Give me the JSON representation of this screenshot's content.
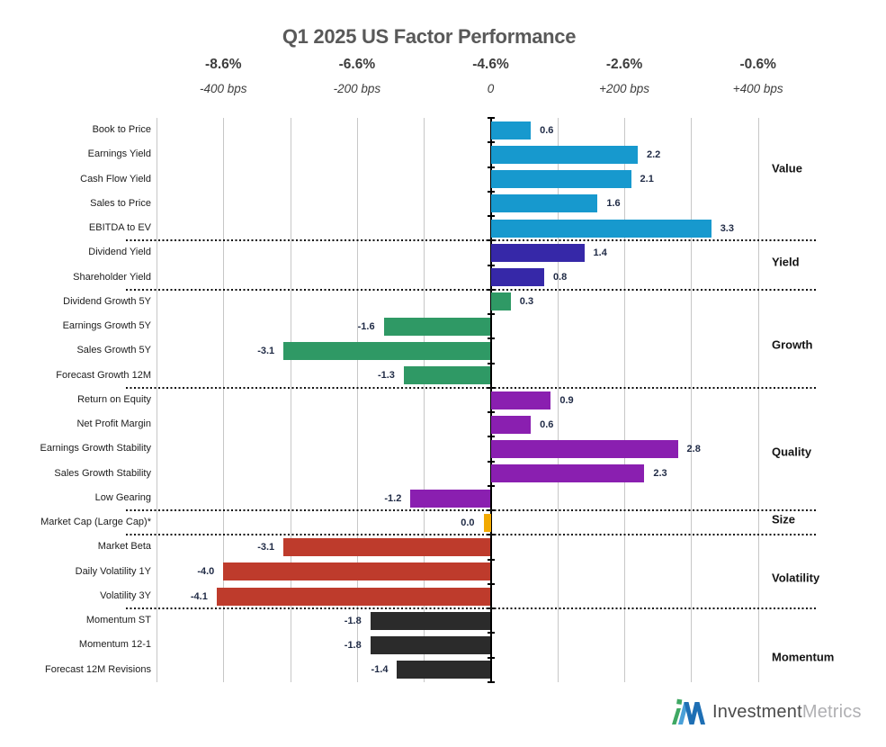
{
  "title": "Q1 2025 US Factor Performance",
  "axis_ticks": [
    {
      "pct": "-8.6%",
      "bps_label": "-400 bps",
      "bps": -400
    },
    {
      "pct": "-6.6%",
      "bps_label": "-200 bps",
      "bps": -200
    },
    {
      "pct": "-4.6%",
      "bps_label": "0",
      "bps": 0
    },
    {
      "pct": "-2.6%",
      "bps_label": "+200 bps",
      "bps": 200
    },
    {
      "pct": "-0.6%",
      "bps_label": "+400 bps",
      "bps": 400
    }
  ],
  "chart_data": {
    "type": "bar",
    "orientation": "horizontal",
    "title": "Q1 2025 US Factor Performance",
    "value_unit": "percent (1.0 = 100 bps)",
    "xlim_bps": [
      -500,
      400
    ],
    "gridline_interval_bps": 100,
    "grid": true,
    "groups": [
      {
        "name": "Value",
        "color": "#1799CE",
        "items": [
          {
            "label": "Book to Price",
            "value": 0.6,
            "display": "0.6"
          },
          {
            "label": "Earnings Yield",
            "value": 2.2,
            "display": "2.2"
          },
          {
            "label": "Cash Flow Yield",
            "value": 2.1,
            "display": "2.1"
          },
          {
            "label": "Sales to Price",
            "value": 1.6,
            "display": "1.6"
          },
          {
            "label": "EBITDA to EV",
            "value": 3.3,
            "display": "3.3"
          }
        ]
      },
      {
        "name": "Yield",
        "color": "#3628A8",
        "items": [
          {
            "label": "Dividend Yield",
            "value": 1.4,
            "display": "1.4"
          },
          {
            "label": "Shareholder Yield",
            "value": 0.8,
            "display": "0.8"
          }
        ]
      },
      {
        "name": "Growth",
        "color": "#2F9965",
        "items": [
          {
            "label": "Dividend Growth 5Y",
            "value": 0.3,
            "display": "0.3"
          },
          {
            "label": "Earnings Growth 5Y",
            "value": -1.6,
            "display": "-1.6"
          },
          {
            "label": "Sales Growth 5Y",
            "value": -3.1,
            "display": "-3.1"
          },
          {
            "label": "Forecast Growth 12M",
            "value": -1.3,
            "display": "-1.3"
          }
        ]
      },
      {
        "name": "Quality",
        "color": "#8A1FB0",
        "items": [
          {
            "label": "Return on Equity",
            "value": 0.9,
            "display": "0.9"
          },
          {
            "label": "Net Profit Margin",
            "value": 0.6,
            "display": "0.6"
          },
          {
            "label": "Earnings Growth Stability",
            "value": 2.8,
            "display": "2.8"
          },
          {
            "label": "Sales Growth Stability",
            "value": 2.3,
            "display": "2.3"
          },
          {
            "label": "Low Gearing",
            "value": -1.2,
            "display": "-1.2"
          }
        ]
      },
      {
        "name": "Size",
        "color": "#F2A900",
        "items": [
          {
            "label": "Market Cap (Large Cap)*",
            "value": 0.0,
            "display": "0.0"
          }
        ]
      },
      {
        "name": "Volatility",
        "color": "#BE3B2C",
        "items": [
          {
            "label": "Market Beta",
            "value": -3.1,
            "display": "-3.1"
          },
          {
            "label": "Daily Volatility 1Y",
            "value": -4.0,
            "display": "-4.0"
          },
          {
            "label": "Volatility 3Y",
            "value": -4.1,
            "display": "-4.1"
          }
        ]
      },
      {
        "name": "Momentum",
        "color": "#2B2B2B",
        "items": [
          {
            "label": "Momentum ST",
            "value": -1.8,
            "display": "-1.8"
          },
          {
            "label": "Momentum 12-1",
            "value": -1.8,
            "display": "-1.8"
          },
          {
            "label": "Forecast 12M Revisions",
            "value": -1.4,
            "display": "-1.4"
          }
        ]
      }
    ]
  },
  "logo": {
    "primary": "Investment",
    "secondary": "Metrics"
  }
}
